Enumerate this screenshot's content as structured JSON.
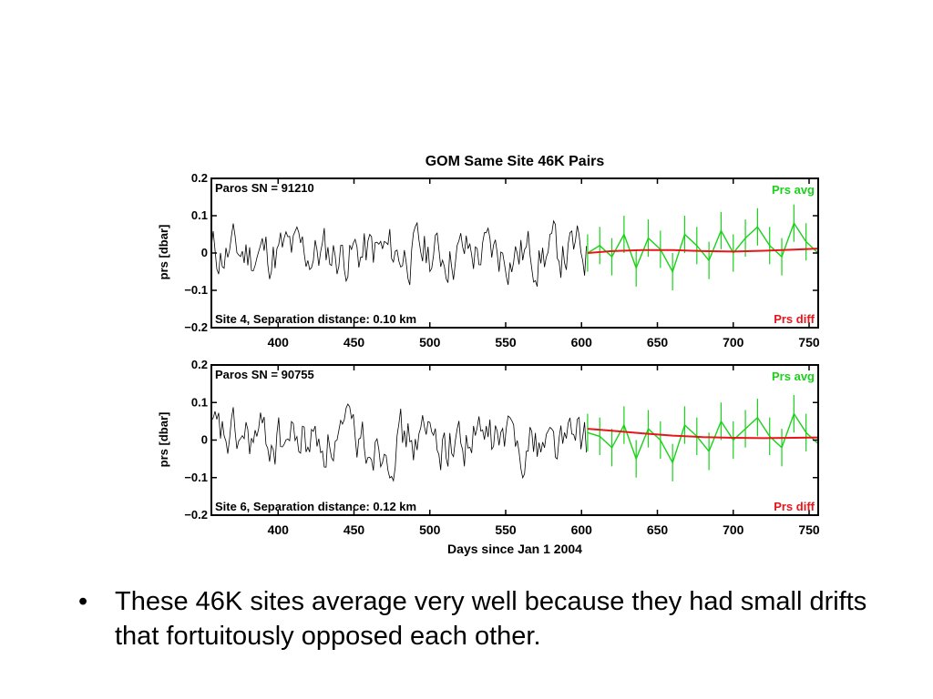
{
  "chart_data": {
    "type": "line",
    "title": "GOM Same Site 46K Pairs",
    "xlabel": "Days since Jan 1 2004",
    "ylabel": "prs [dbar]",
    "xlim": [
      356,
      756
    ],
    "ylim": [
      -0.2,
      0.2
    ],
    "x_ticks": [
      400,
      450,
      500,
      550,
      600,
      650,
      700,
      750
    ],
    "y_ticks": [
      -0.2,
      -0.1,
      0,
      0.1,
      0.2
    ],
    "y_tick_labels": [
      "−0.2",
      "−0.1",
      "0",
      "0.1",
      "0.2"
    ],
    "grid": false,
    "panels": [
      {
        "paros_label": "Paros SN = 91210",
        "site_label": "Site 4,  Separation distance: 0.10 km",
        "legend_top": "Prs avg",
        "legend_bottom": "Prs diff",
        "series": [
          {
            "name": "Prs avg",
            "style": "green",
            "x": [
              604,
              612,
              620,
              628,
              636,
              644,
              652,
              660,
              668,
              676,
              684,
              692,
              700,
              708,
              716,
              724,
              732,
              740,
              748,
              756
            ],
            "y": [
              0.0,
              0.02,
              -0.01,
              0.05,
              -0.04,
              0.04,
              0.01,
              -0.05,
              0.05,
              0.02,
              -0.02,
              0.06,
              0.0,
              0.04,
              0.07,
              0.02,
              -0.01,
              0.08,
              0.03,
              0.0
            ]
          },
          {
            "name": "Prs diff",
            "style": "red",
            "x": [
              604,
              620,
              640,
              660,
              680,
              700,
              720,
              740,
              756
            ],
            "y": [
              0.0,
              0.005,
              0.008,
              0.008,
              0.005,
              0.004,
              0.006,
              0.009,
              0.012
            ]
          }
        ]
      },
      {
        "paros_label": "Paros SN = 90755",
        "site_label": "Site 6,  Separation distance: 0.12 km",
        "legend_top": "Prs avg",
        "legend_bottom": "Prs diff",
        "series": [
          {
            "name": "Prs avg",
            "style": "green",
            "x": [
              604,
              612,
              620,
              628,
              636,
              644,
              652,
              660,
              668,
              676,
              684,
              692,
              700,
              708,
              716,
              724,
              732,
              740,
              748,
              756
            ],
            "y": [
              0.02,
              0.01,
              -0.02,
              0.04,
              -0.05,
              0.03,
              0.0,
              -0.06,
              0.04,
              0.01,
              -0.03,
              0.05,
              0.0,
              0.03,
              0.06,
              0.01,
              -0.02,
              0.07,
              0.02,
              -0.01
            ]
          },
          {
            "name": "Prs diff",
            "style": "red",
            "x": [
              604,
              620,
              640,
              660,
              680,
              700,
              720,
              740,
              756
            ],
            "y": [
              0.03,
              0.025,
              0.018,
              0.012,
              0.008,
              0.006,
              0.005,
              0.006,
              0.007
            ]
          }
        ]
      }
    ]
  },
  "colors": {
    "green": "#19d219",
    "red": "#e8151b",
    "black": "#000000"
  },
  "bullet": {
    "symbol": "•",
    "text": "These 46K sites average very well because they had small drifts that fortuitously opposed each other."
  }
}
